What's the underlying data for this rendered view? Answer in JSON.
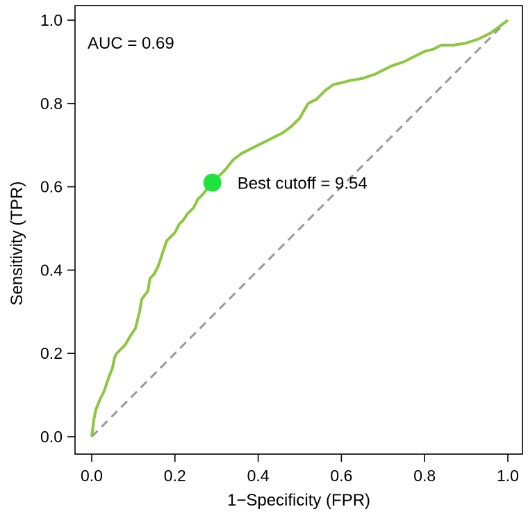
{
  "chart_data": {
    "type": "line",
    "xlabel": "1−Specificity (FPR)",
    "ylabel": "Sensitivity (TPR)",
    "xlim": [
      0,
      1
    ],
    "ylim": [
      0,
      1
    ],
    "x_ticks": [
      "0.0",
      "0.2",
      "0.4",
      "0.6",
      "0.8",
      "1.0"
    ],
    "y_ticks": [
      "0.0",
      "0.2",
      "0.4",
      "0.6",
      "0.8",
      "1.0"
    ],
    "grid": false,
    "auc_label": "AUC = 0.69",
    "cutoff_label": "Best cutoff = 9.54",
    "cutoff_point": {
      "x": 0.29,
      "y": 0.61
    },
    "colors": {
      "roc": "#8dc63f",
      "diagonal": "#999999",
      "cutoff": "#1ee33a"
    },
    "series": [
      {
        "x": [
          0.0,
          0.005,
          0.01,
          0.02,
          0.03,
          0.04,
          0.05,
          0.055,
          0.06,
          0.07,
          0.08,
          0.095,
          0.105,
          0.115,
          0.12,
          0.135,
          0.14,
          0.15,
          0.16,
          0.17,
          0.18,
          0.19,
          0.2,
          0.21,
          0.22,
          0.23,
          0.245,
          0.255,
          0.27,
          0.28,
          0.29,
          0.305,
          0.32,
          0.34,
          0.36,
          0.38,
          0.4,
          0.42,
          0.44,
          0.46,
          0.48,
          0.5,
          0.52,
          0.54,
          0.56,
          0.58,
          0.6,
          0.62,
          0.65,
          0.68,
          0.7,
          0.72,
          0.75,
          0.78,
          0.8,
          0.82,
          0.84,
          0.87,
          0.9,
          0.93,
          0.96,
          0.98,
          1.0
        ],
        "y": [
          0.0,
          0.04,
          0.065,
          0.09,
          0.11,
          0.14,
          0.165,
          0.19,
          0.2,
          0.21,
          0.22,
          0.245,
          0.26,
          0.3,
          0.33,
          0.35,
          0.38,
          0.39,
          0.41,
          0.44,
          0.47,
          0.48,
          0.49,
          0.51,
          0.52,
          0.535,
          0.55,
          0.57,
          0.585,
          0.6,
          0.61,
          0.625,
          0.64,
          0.665,
          0.68,
          0.69,
          0.7,
          0.71,
          0.72,
          0.73,
          0.745,
          0.765,
          0.8,
          0.81,
          0.83,
          0.845,
          0.85,
          0.855,
          0.86,
          0.87,
          0.88,
          0.89,
          0.9,
          0.915,
          0.925,
          0.93,
          0.94,
          0.94,
          0.945,
          0.955,
          0.97,
          0.985,
          1.0
        ]
      }
    ]
  }
}
